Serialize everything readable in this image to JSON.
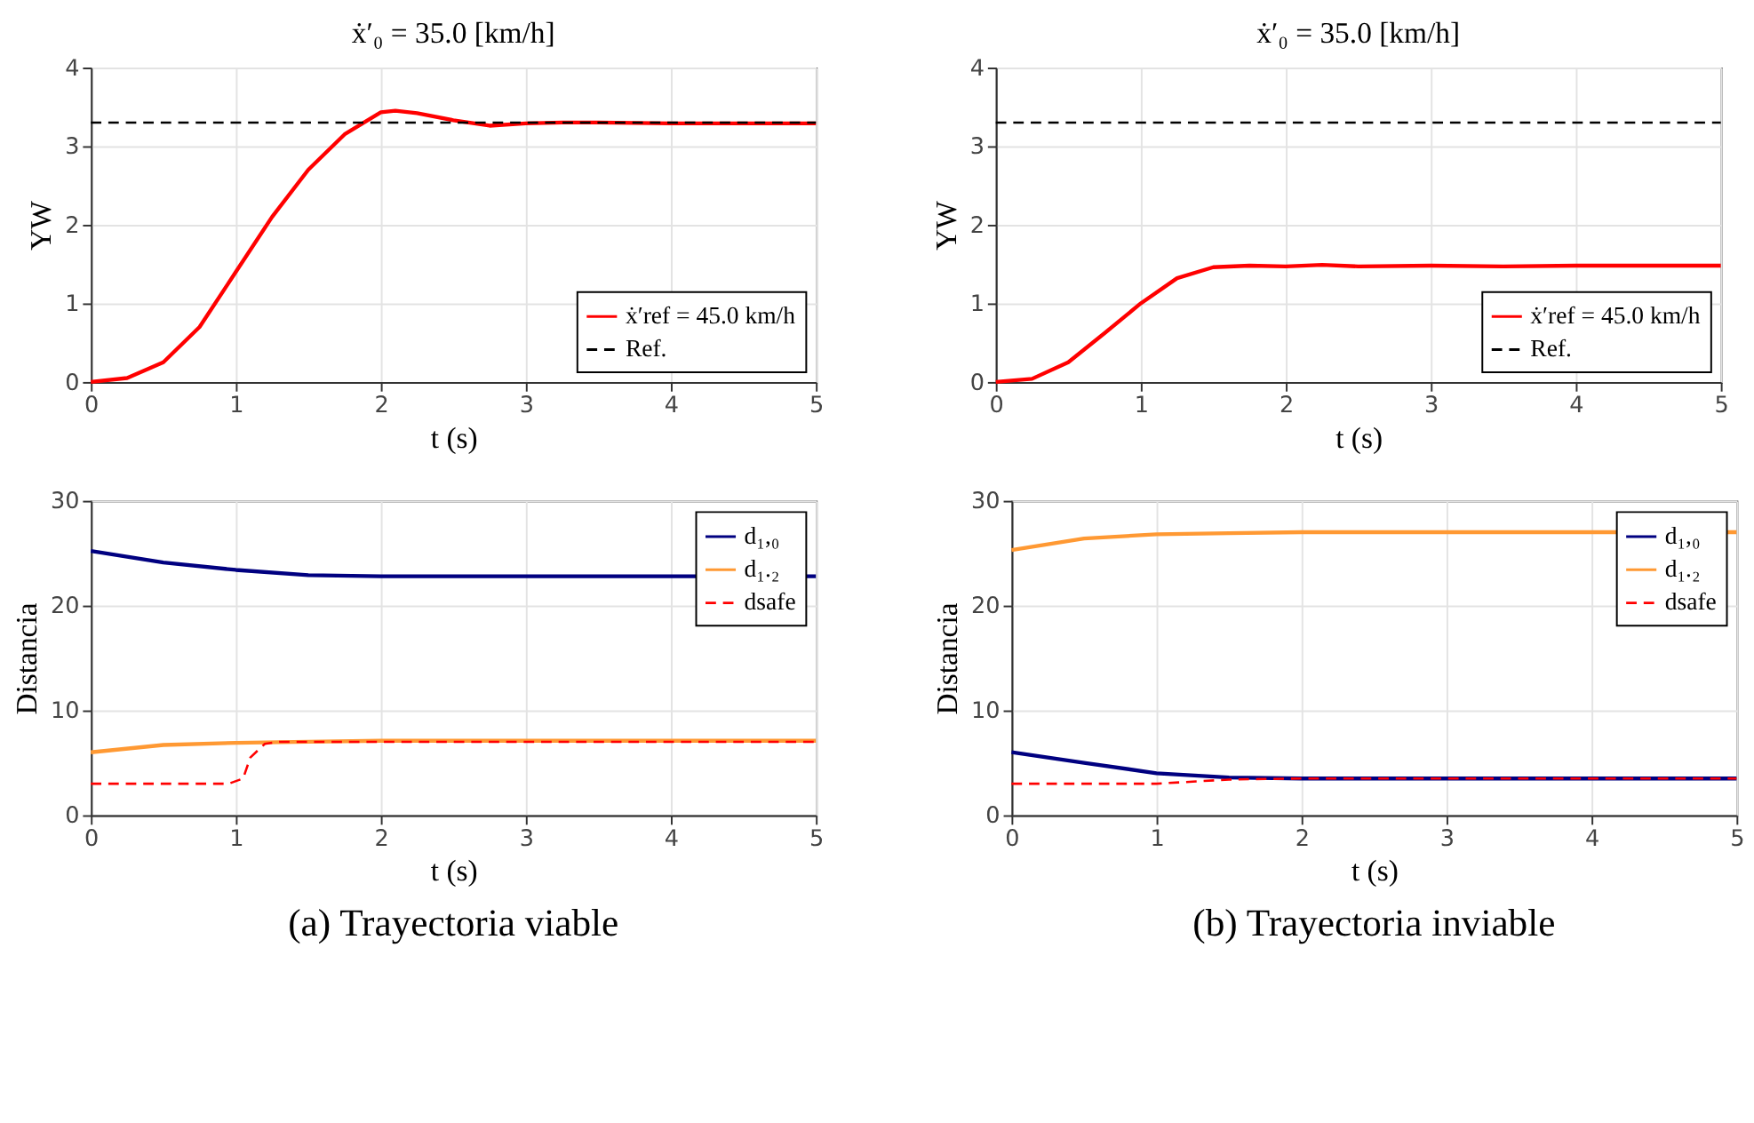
{
  "chart_data": [
    {
      "type": "line",
      "title": "ẋ′₀ = 35.0 [km/h]",
      "xlabel": "t (s)",
      "ylabel": "YW",
      "xlim": [
        0,
        5
      ],
      "xticks": [
        0,
        1,
        2,
        3,
        4,
        5
      ],
      "ylim": [
        0,
        4
      ],
      "yticks": [
        0,
        1,
        2,
        3,
        4
      ],
      "grid": true,
      "legend": "bottom right",
      "series": [
        {
          "name": "ẋ′ref = 45.0 km/h",
          "color": "#ff0000",
          "line_style": "solid",
          "x": [
            0,
            0.25,
            0.5,
            0.75,
            1.0,
            1.25,
            1.5,
            1.75,
            2.0,
            2.1,
            2.25,
            2.5,
            2.75,
            3.0,
            3.25,
            3.5,
            4.0,
            4.5,
            5.0
          ],
          "values": [
            0,
            0.05,
            0.25,
            0.7,
            1.4,
            2.1,
            2.7,
            3.15,
            3.43,
            3.45,
            3.42,
            3.33,
            3.26,
            3.29,
            3.3,
            3.3,
            3.29,
            3.29,
            3.29
          ]
        },
        {
          "name": "Ref.",
          "color": "#000000",
          "line_style": "dashed",
          "x": [
            0,
            5
          ],
          "values": [
            3.3,
            3.3
          ]
        }
      ]
    },
    {
      "type": "line",
      "title": "ẋ′₀ = 35.0 [km/h]",
      "xlabel": "t (s)",
      "ylabel": "YW",
      "xlim": [
        0,
        5
      ],
      "xticks": [
        0,
        1,
        2,
        3,
        4,
        5
      ],
      "ylim": [
        0,
        4
      ],
      "yticks": [
        0,
        1,
        2,
        3,
        4
      ],
      "grid": true,
      "legend": "bottom right",
      "series": [
        {
          "name": "ẋ′ref = 45.0 km/h",
          "color": "#ff0000",
          "line_style": "solid",
          "x": [
            0,
            0.25,
            0.5,
            0.75,
            1.0,
            1.25,
            1.5,
            1.75,
            2.0,
            2.25,
            2.5,
            3.0,
            3.5,
            4.0,
            4.5,
            5.0
          ],
          "values": [
            0,
            0.04,
            0.25,
            0.62,
            1.0,
            1.32,
            1.46,
            1.48,
            1.47,
            1.49,
            1.47,
            1.48,
            1.47,
            1.48,
            1.48,
            1.48
          ]
        },
        {
          "name": "Ref.",
          "color": "#000000",
          "line_style": "dashed",
          "x": [
            0,
            5
          ],
          "values": [
            3.3,
            3.3
          ]
        }
      ]
    },
    {
      "type": "line",
      "xlabel": "t (s)",
      "ylabel": "Distancia",
      "xlim": [
        0,
        5
      ],
      "xticks": [
        0,
        1,
        2,
        3,
        4,
        5
      ],
      "ylim": [
        0,
        30
      ],
      "yticks": [
        0,
        10,
        20,
        30
      ],
      "grid": true,
      "legend": "top right",
      "annotations": [
        "(a) Trayectoria viable"
      ],
      "series": [
        {
          "name": "d₁,₀",
          "color": "#000080",
          "line_style": "solid",
          "x": [
            0,
            0.5,
            1.0,
            1.5,
            2.0,
            5.0
          ],
          "values": [
            25.2,
            24.1,
            23.4,
            22.9,
            22.8,
            22.8
          ]
        },
        {
          "name": "d₁.₂",
          "color": "#ff9933",
          "line_style": "solid",
          "x": [
            0,
            0.5,
            1.0,
            1.5,
            2.0,
            5.0
          ],
          "values": [
            6.0,
            6.7,
            6.9,
            7.0,
            7.1,
            7.1
          ]
        },
        {
          "name": "dsafe",
          "color": "#ff0000",
          "line_style": "dashed",
          "x": [
            0,
            0.95,
            1.05,
            1.1,
            1.2,
            1.3,
            2.0,
            5.0
          ],
          "values": [
            3,
            3,
            3.5,
            5.5,
            6.8,
            7.0,
            7.0,
            7.0
          ]
        }
      ]
    },
    {
      "type": "line",
      "xlabel": "t (s)",
      "ylabel": "Distancia",
      "xlim": [
        0,
        5
      ],
      "xticks": [
        0,
        1,
        2,
        3,
        4,
        5
      ],
      "ylim": [
        0,
        30
      ],
      "yticks": [
        0,
        10,
        20,
        30
      ],
      "grid": true,
      "legend": "top right",
      "annotations": [
        "(b) Trayectoria inviable"
      ],
      "series": [
        {
          "name": "d₁,₀",
          "color": "#000080",
          "line_style": "solid",
          "x": [
            0,
            0.5,
            1.0,
            1.5,
            2.0,
            5.0
          ],
          "values": [
            6.0,
            5.0,
            4.0,
            3.6,
            3.5,
            3.5
          ]
        },
        {
          "name": "d₁.₂",
          "color": "#ff9933",
          "line_style": "solid",
          "x": [
            0,
            0.5,
            1.0,
            1.5,
            2.0,
            5.0
          ],
          "values": [
            25.3,
            26.4,
            26.8,
            26.9,
            27.0,
            27.0
          ]
        },
        {
          "name": "dsafe",
          "color": "#ff0000",
          "line_style": "dashed",
          "x": [
            0,
            1.0,
            1.25,
            1.5,
            2.0,
            5.0
          ],
          "values": [
            3,
            3,
            3.2,
            3.4,
            3.5,
            3.5
          ]
        }
      ]
    }
  ]
}
